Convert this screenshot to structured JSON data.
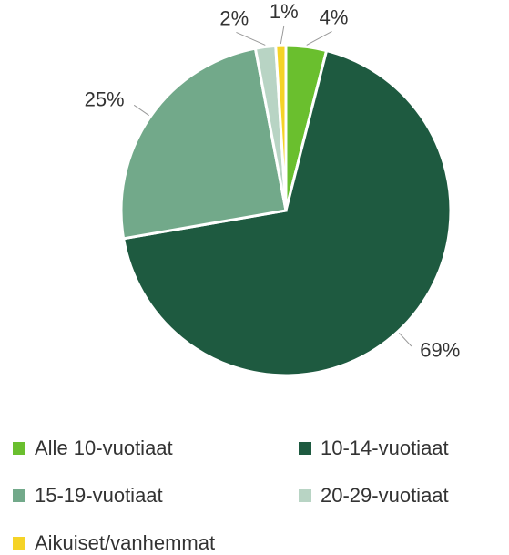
{
  "chart_data": {
    "type": "pie",
    "categories": [
      "Alle 10-vuotiaat",
      "10-14-vuotiaat",
      "15-19-vuotiaat",
      "20-29-vuotiaat",
      "Aikuiset/vanhemmat"
    ],
    "values": [
      4,
      69,
      25,
      2,
      1
    ],
    "value_labels": [
      "4%",
      "69%",
      "25%",
      "2%",
      "1%"
    ],
    "colors": [
      "#6abf2e",
      "#1e5a40",
      "#72a98a",
      "#b8d4c4",
      "#f5d327"
    ]
  }
}
